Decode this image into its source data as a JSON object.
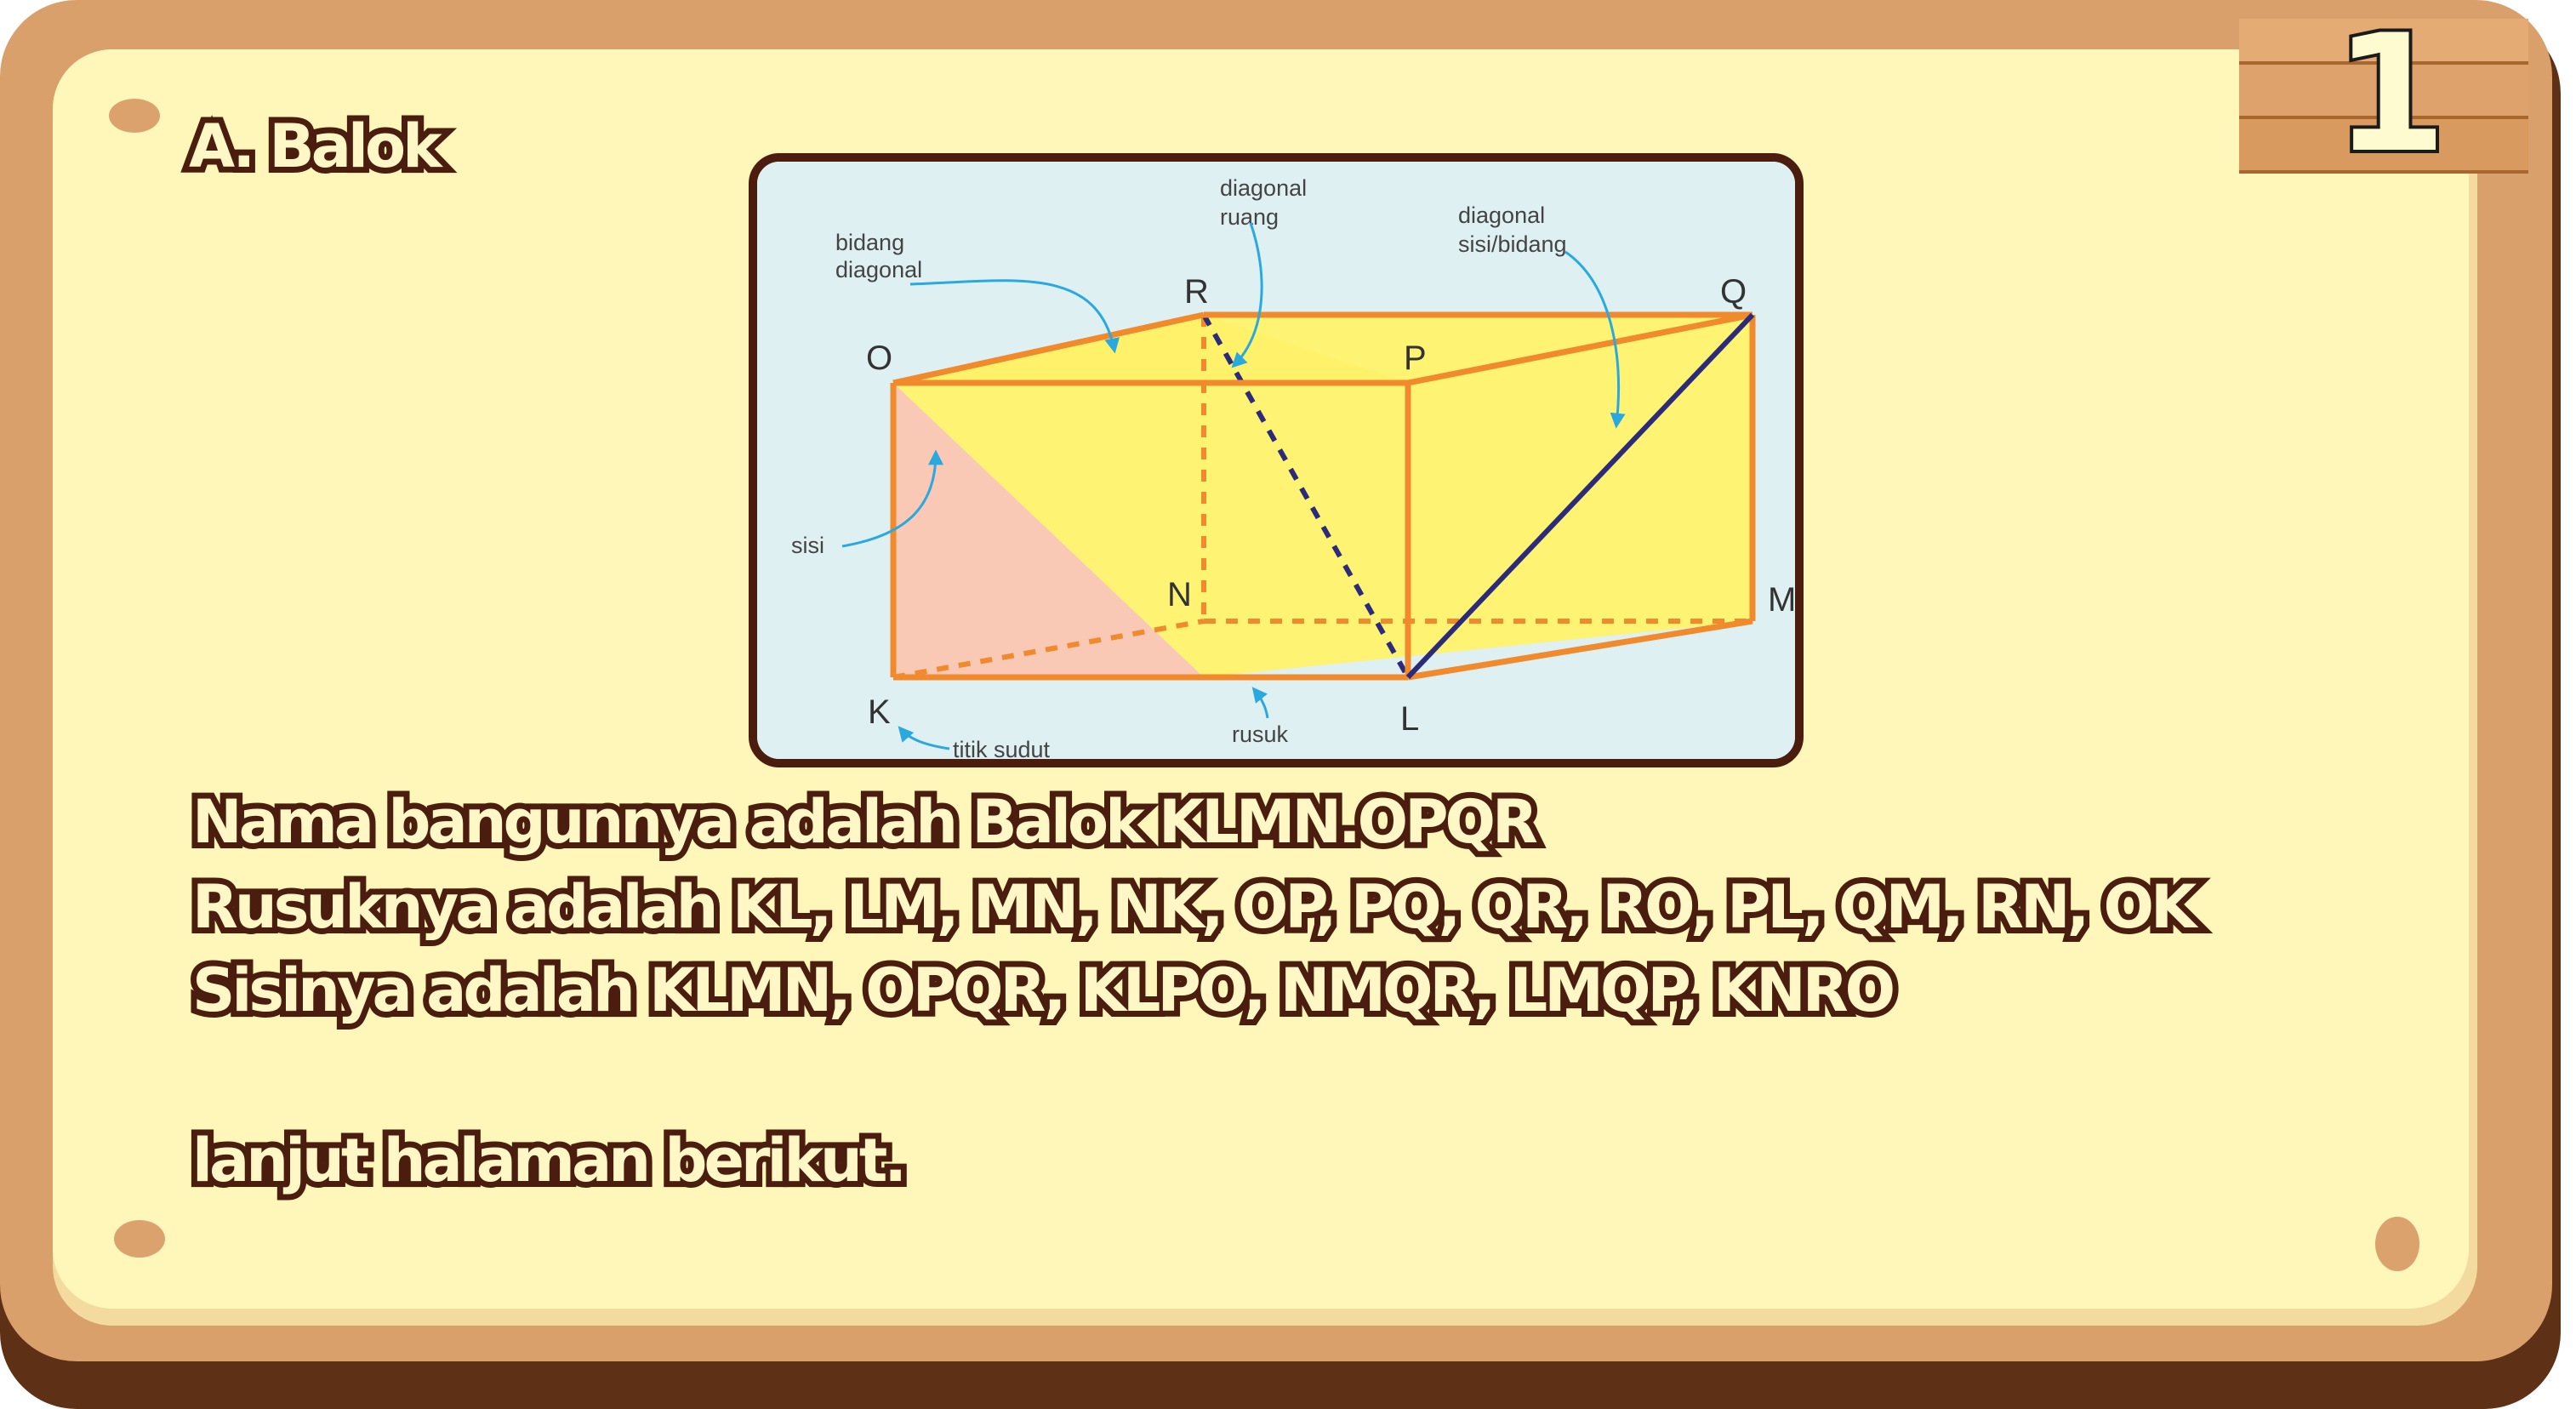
{
  "badge": {
    "number": "1"
  },
  "heading": "A. Balok",
  "diagram": {
    "vertices": {
      "O": "O",
      "P": "P",
      "Q": "Q",
      "R": "R",
      "K": "K",
      "L": "L",
      "M": "M",
      "N": "N"
    },
    "labels": {
      "bidang_diagonal_1": "bidang",
      "bidang_diagonal_2": "diagonal",
      "diagonal_ruang_1": "diagonal",
      "diagonal_ruang_2": "ruang",
      "diagonal_sisi_1": "diagonal",
      "diagonal_sisi_2": "sisi/bidang",
      "sisi": "sisi",
      "titik_sudut": "titik sudut",
      "rusuk": "rusuk"
    },
    "colors": {
      "edge": "#f08a2c",
      "diagonal_plane": "#fff26a",
      "face": "#f9c9b6",
      "space_diagonal": "#2b2b7a",
      "arrow": "#2aa9e0"
    }
  },
  "lines": [
    "Nama bangunnya adalah Balok KLMN.OPQR",
    "Rusuknya adalah KL, LM, MN, NK, OP, PQ, QR, RO, PL, QM, RN, OK",
    "Sisinya adalah KLMN, OPQR, KLPO, NMQR, LMQP, KNRO",
    "lanjut halaman berikut."
  ]
}
